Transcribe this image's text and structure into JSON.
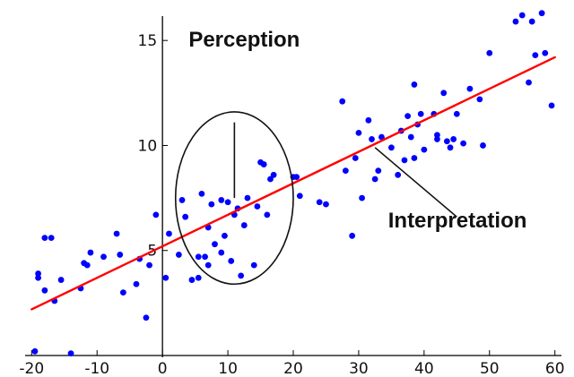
{
  "chart_data": {
    "type": "scatter",
    "x_ticks": [
      -20,
      -10,
      0,
      10,
      20,
      30,
      40,
      50,
      60
    ],
    "y_ticks": [
      5,
      10,
      15
    ],
    "xlim": [
      -21,
      61
    ],
    "ylim": [
      0,
      16.5
    ],
    "grid": false,
    "points": [
      [
        -19,
        3.9
      ],
      [
        -18,
        5.6
      ],
      [
        -17,
        5.6
      ],
      [
        -16.5,
        2.6
      ],
      [
        -15.5,
        3.6
      ],
      [
        -18,
        3.1
      ],
      [
        -19.5,
        0.2
      ],
      [
        -19,
        3.7
      ],
      [
        -14,
        0.1
      ],
      [
        -12.5,
        3.2
      ],
      [
        -12,
        4.4
      ],
      [
        -11,
        4.9
      ],
      [
        -11.5,
        4.3
      ],
      [
        -9,
        4.7
      ],
      [
        -7,
        5.8
      ],
      [
        -6.5,
        4.8
      ],
      [
        -6,
        3.0
      ],
      [
        -4,
        3.4
      ],
      [
        -3.5,
        4.6
      ],
      [
        -2.5,
        1.8
      ],
      [
        -2,
        4.3
      ],
      [
        -1,
        6.7
      ],
      [
        0.5,
        3.7
      ],
      [
        1,
        5.8
      ],
      [
        2.5,
        4.8
      ],
      [
        3,
        7.4
      ],
      [
        3.5,
        6.6
      ],
      [
        4.5,
        3.6
      ],
      [
        5.5,
        4.7
      ],
      [
        5.5,
        3.7
      ],
      [
        6,
        7.7
      ],
      [
        6.5,
        4.7
      ],
      [
        7,
        6.1
      ],
      [
        7,
        4.3
      ],
      [
        7.5,
        7.2
      ],
      [
        8,
        5.3
      ],
      [
        9,
        7.4
      ],
      [
        9,
        4.9
      ],
      [
        9.5,
        5.7
      ],
      [
        10,
        7.3
      ],
      [
        10.5,
        4.5
      ],
      [
        11,
        6.7
      ],
      [
        11.5,
        7.0
      ],
      [
        12,
        3.8
      ],
      [
        12.5,
        6.2
      ],
      [
        13,
        7.5
      ],
      [
        14,
        4.3
      ],
      [
        14.5,
        7.1
      ],
      [
        15,
        9.2
      ],
      [
        15.5,
        9.1
      ],
      [
        16,
        6.7
      ],
      [
        16.5,
        8.4
      ],
      [
        17,
        8.6
      ],
      [
        20,
        8.5
      ],
      [
        20.5,
        8.5
      ],
      [
        21,
        7.6
      ],
      [
        24,
        7.3
      ],
      [
        25,
        7.2
      ],
      [
        27.5,
        12.1
      ],
      [
        28,
        8.8
      ],
      [
        29,
        5.7
      ],
      [
        29.5,
        9.4
      ],
      [
        30,
        10.6
      ],
      [
        30.5,
        7.5
      ],
      [
        31.5,
        11.2
      ],
      [
        32,
        10.3
      ],
      [
        32.5,
        8.4
      ],
      [
        33,
        8.8
      ],
      [
        33.5,
        10.4
      ],
      [
        35,
        9.9
      ],
      [
        36,
        8.6
      ],
      [
        36.5,
        10.7
      ],
      [
        37,
        9.3
      ],
      [
        37.5,
        11.4
      ],
      [
        38,
        10.4
      ],
      [
        38.5,
        12.9
      ],
      [
        38.5,
        9.4
      ],
      [
        39,
        11.0
      ],
      [
        39.5,
        11.5
      ],
      [
        40,
        9.8
      ],
      [
        41.5,
        11.5
      ],
      [
        42,
        10.5
      ],
      [
        42,
        10.3
      ],
      [
        43,
        12.5
      ],
      [
        43.5,
        10.2
      ],
      [
        44,
        9.9
      ],
      [
        44.5,
        10.3
      ],
      [
        45,
        11.5
      ],
      [
        46,
        10.1
      ],
      [
        47,
        12.7
      ],
      [
        48.5,
        12.2
      ],
      [
        49,
        10.0
      ],
      [
        50,
        14.4
      ],
      [
        54,
        15.9
      ],
      [
        55,
        16.2
      ],
      [
        56,
        13.0
      ],
      [
        56.5,
        15.9
      ],
      [
        57,
        14.3
      ],
      [
        58,
        16.3
      ],
      [
        58.5,
        14.4
      ],
      [
        59.5,
        11.9
      ]
    ],
    "trend_line": {
      "x": [
        -20,
        60
      ],
      "y": [
        2.2,
        14.2
      ]
    },
    "annotations": [
      {
        "text": "Perception",
        "anchor": [
          11,
          7.5
        ],
        "text_at": [
          4,
          14.7
        ],
        "line_to": [
          11,
          11.1
        ]
      },
      {
        "text": "Interpretation",
        "anchor": [
          32.5,
          9.9
        ],
        "text_at": [
          34.5,
          6.1
        ],
        "line_to": [
          45,
          6.6
        ]
      }
    ],
    "perception_ellipse": {
      "center": [
        11,
        7.5
      ],
      "rx": 9,
      "ry": 4.1
    }
  },
  "colors": {
    "points": "#0000ff",
    "trend": "#ff0000",
    "axes": "#000000",
    "annotations": "#111111"
  }
}
